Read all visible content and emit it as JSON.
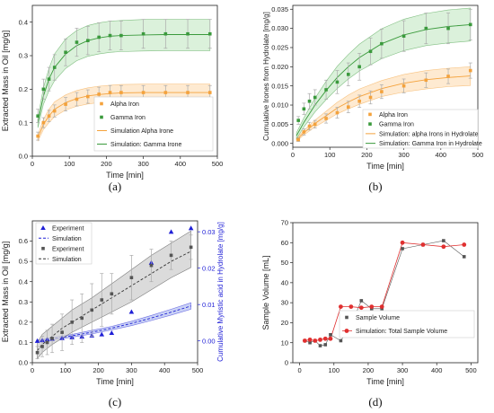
{
  "chart_data": [
    {
      "panel": "(a)",
      "type": "scatter",
      "xlabel": "Time [min]",
      "ylabel": "Extracted Mass in Oil [mg/g]",
      "xlim": [
        0,
        500
      ],
      "ylim": [
        0,
        0.45
      ],
      "xticks": [
        0,
        100,
        200,
        300,
        400,
        500
      ],
      "yticks": [
        0.0,
        0.1,
        0.2,
        0.3,
        0.4
      ],
      "xtick_labels": [
        "0",
        "100",
        "200",
        "300",
        "400",
        "500"
      ],
      "ytick_labels": [
        "0.0",
        "0.1",
        "0.2",
        "0.3",
        "0.4"
      ],
      "legend_placement": "bottom-right",
      "series": [
        {
          "name": "Alpha Iron",
          "kind": "points",
          "color": "#f4a23c",
          "marker": "square",
          "x": [
            15,
            30,
            45,
            60,
            90,
            120,
            150,
            180,
            210,
            240,
            300,
            360,
            420,
            480
          ],
          "y": [
            0.06,
            0.1,
            0.12,
            0.135,
            0.155,
            0.17,
            0.178,
            0.185,
            0.19,
            0.19,
            0.19,
            0.19,
            0.19,
            0.19
          ],
          "err": [
            0.012,
            0.015,
            0.017,
            0.018,
            0.02,
            0.02,
            0.02,
            0.021,
            0.021,
            0.021,
            0.021,
            0.021,
            0.021,
            0.021
          ]
        },
        {
          "name": "Gamma Iron",
          "kind": "points",
          "color": "#3a9a3c",
          "marker": "square",
          "x": [
            15,
            30,
            45,
            60,
            90,
            120,
            150,
            180,
            210,
            240,
            300,
            360,
            420,
            480
          ],
          "y": [
            0.12,
            0.2,
            0.23,
            0.265,
            0.31,
            0.34,
            0.345,
            0.355,
            0.36,
            0.36,
            0.365,
            0.365,
            0.365,
            0.365
          ],
          "err": [
            0.02,
            0.03,
            0.035,
            0.038,
            0.04,
            0.042,
            0.042,
            0.043,
            0.043,
            0.043,
            0.043,
            0.043,
            0.043,
            0.043
          ]
        },
        {
          "name": "Simulation Alpha Irone",
          "kind": "band",
          "color": "#f4a23c",
          "fill": "#fde3c2",
          "x": [
            15,
            30,
            45,
            60,
            90,
            120,
            150,
            180,
            210,
            240,
            300,
            360,
            420,
            480
          ],
          "y": [
            0.055,
            0.095,
            0.12,
            0.14,
            0.16,
            0.172,
            0.18,
            0.184,
            0.187,
            0.189,
            0.19,
            0.19,
            0.19,
            0.19
          ],
          "lower": [
            0.045,
            0.08,
            0.1,
            0.118,
            0.138,
            0.149,
            0.156,
            0.16,
            0.163,
            0.165,
            0.166,
            0.166,
            0.166,
            0.166
          ],
          "upper": [
            0.065,
            0.11,
            0.14,
            0.162,
            0.183,
            0.196,
            0.204,
            0.209,
            0.212,
            0.214,
            0.215,
            0.215,
            0.215,
            0.215
          ]
        },
        {
          "name": "Simulation: Gamma Irone",
          "kind": "band",
          "color": "#3a9a3c",
          "fill": "#cfeccf",
          "x": [
            15,
            30,
            45,
            60,
            90,
            120,
            150,
            180,
            210,
            240,
            300,
            360,
            420,
            480
          ],
          "y": [
            0.1,
            0.18,
            0.23,
            0.265,
            0.305,
            0.33,
            0.345,
            0.353,
            0.358,
            0.36,
            0.362,
            0.363,
            0.363,
            0.363
          ],
          "lower": [
            0.085,
            0.155,
            0.195,
            0.225,
            0.262,
            0.285,
            0.298,
            0.305,
            0.31,
            0.312,
            0.314,
            0.315,
            0.315,
            0.315
          ],
          "upper": [
            0.115,
            0.205,
            0.262,
            0.305,
            0.35,
            0.375,
            0.39,
            0.398,
            0.403,
            0.405,
            0.408,
            0.408,
            0.408,
            0.408
          ]
        }
      ]
    },
    {
      "panel": "(b)",
      "type": "scatter",
      "xlabel": "Time [min]",
      "ylabel": "Cumulative Irones from Hydrolate [mg/g]",
      "xlim": [
        0,
        500
      ],
      "ylim": [
        -0.001,
        0.036
      ],
      "xticks": [
        0,
        100,
        200,
        300,
        400,
        500
      ],
      "yticks": [
        0.0,
        0.005,
        0.01,
        0.015,
        0.02,
        0.025,
        0.03,
        0.035
      ],
      "xtick_labels": [
        "0",
        "100",
        "200",
        "300",
        "400",
        "500"
      ],
      "ytick_labels": [
        "0.000",
        "0.005",
        "0.010",
        "0.015",
        "0.020",
        "0.025",
        "0.030",
        "0.035"
      ],
      "legend_placement": "bottom-right",
      "series": [
        {
          "name": "Alpha Iron",
          "kind": "points",
          "color": "#f4a23c",
          "marker": "square",
          "x": [
            15,
            30,
            45,
            60,
            90,
            120,
            150,
            180,
            210,
            240,
            300,
            360,
            420,
            480
          ],
          "y": [
            0.001,
            0.003,
            0.0045,
            0.005,
            0.0065,
            0.008,
            0.0095,
            0.011,
            0.012,
            0.0135,
            0.015,
            0.0165,
            0.0175,
            0.019
          ],
          "err": [
            0.0005,
            0.0008,
            0.001,
            0.001,
            0.0012,
            0.0014,
            0.0015,
            0.0016,
            0.0017,
            0.0018,
            0.0018,
            0.0019,
            0.0019,
            0.002
          ]
        },
        {
          "name": "Gamma Iron",
          "kind": "points",
          "color": "#3a9a3c",
          "marker": "square",
          "x": [
            15,
            30,
            45,
            60,
            90,
            120,
            150,
            180,
            210,
            240,
            300,
            360,
            420,
            480
          ],
          "y": [
            0.006,
            0.009,
            0.011,
            0.012,
            0.014,
            0.016,
            0.018,
            0.02,
            0.024,
            0.026,
            0.028,
            0.03,
            0.03,
            0.031
          ],
          "err": [
            0.001,
            0.0015,
            0.002,
            0.002,
            0.0025,
            0.003,
            0.003,
            0.0035,
            0.0035,
            0.0038,
            0.004,
            0.004,
            0.004,
            0.004
          ]
        },
        {
          "name": "Simulation: alpha Irons in Hydrolate",
          "kind": "band",
          "color": "#f4a23c",
          "fill": "#fde3c2",
          "x": [
            10,
            30,
            60,
            90,
            120,
            150,
            180,
            240,
            300,
            360,
            420,
            480
          ],
          "y": [
            0.001,
            0.0028,
            0.0052,
            0.0072,
            0.0092,
            0.0108,
            0.0122,
            0.0143,
            0.0157,
            0.0166,
            0.0172,
            0.0176
          ],
          "lower": [
            0.0006,
            0.0022,
            0.0043,
            0.006,
            0.0077,
            0.009,
            0.0102,
            0.0122,
            0.0134,
            0.0142,
            0.0148,
            0.0151
          ],
          "upper": [
            0.0014,
            0.0034,
            0.0061,
            0.0084,
            0.0107,
            0.0126,
            0.0142,
            0.0164,
            0.018,
            0.019,
            0.0196,
            0.02
          ]
        },
        {
          "name": "Simulation: Gamma Iron in Hydrolate",
          "kind": "band",
          "color": "#3a9a3c",
          "fill": "#cfeccf",
          "x": [
            10,
            30,
            60,
            90,
            120,
            150,
            180,
            240,
            300,
            360,
            420,
            480
          ],
          "y": [
            0.002,
            0.0055,
            0.01,
            0.0138,
            0.0172,
            0.02,
            0.0224,
            0.026,
            0.0283,
            0.0297,
            0.0305,
            0.031
          ],
          "lower": [
            0.0012,
            0.0043,
            0.0082,
            0.0114,
            0.0143,
            0.0168,
            0.0189,
            0.0221,
            0.0242,
            0.0255,
            0.0262,
            0.0267
          ],
          "upper": [
            0.0028,
            0.0067,
            0.0118,
            0.0162,
            0.0201,
            0.0232,
            0.0259,
            0.0299,
            0.0324,
            0.0339,
            0.0348,
            0.0353
          ]
        }
      ]
    },
    {
      "panel": "(c)",
      "type": "scatter",
      "xlabel": "Time [min]",
      "ylabel": "Extracted Mass in Oil [mg/g]",
      "y2label": "Cumulative Myristic acid in Hydrolate [mg/g]",
      "xlim": [
        0,
        500
      ],
      "ylim": [
        0,
        0.7
      ],
      "y2lim": [
        -0.006,
        0.033
      ],
      "xticks": [
        0,
        100,
        200,
        300,
        400,
        500
      ],
      "yticks": [
        0.0,
        0.1,
        0.2,
        0.3,
        0.4,
        0.5,
        0.6
      ],
      "y2ticks": [
        0.0,
        0.01,
        0.02,
        0.03
      ],
      "xtick_labels": [
        "0",
        "100",
        "200",
        "300",
        "400",
        "500"
      ],
      "ytick_labels": [
        "0.0",
        "0.1",
        "0.2",
        "0.3",
        "0.4",
        "0.5",
        "0.6"
      ],
      "y2tick_labels": [
        "0.00",
        "0.01",
        "0.02",
        "0.03"
      ],
      "legend_placement": "top-left",
      "series": [
        {
          "name": "Experiment",
          "kind": "points",
          "axis": "y2",
          "color": "#1f1fd6",
          "marker": "triangle",
          "x": [
            15,
            30,
            45,
            60,
            90,
            120,
            150,
            180,
            210,
            240,
            300,
            360,
            420,
            480
          ],
          "y": [
            0.0,
            0.0002,
            0.0004,
            0.0006,
            0.0008,
            0.001,
            0.0012,
            0.0015,
            0.0018,
            0.0022,
            0.008,
            0.0215,
            0.03,
            0.031
          ],
          "err": [
            0,
            0,
            0,
            0,
            0,
            0,
            0,
            0,
            0,
            0,
            0,
            0,
            0,
            0
          ]
        },
        {
          "name": "Simulation",
          "kind": "band",
          "axis": "y2",
          "color": "#1f1fd6",
          "fill": "#b8c3f2",
          "dash": true,
          "x": [
            15,
            60,
            120,
            180,
            240,
            300,
            360,
            420,
            480
          ],
          "y": [
            0.0,
            0.0006,
            0.0014,
            0.0024,
            0.0035,
            0.0048,
            0.0063,
            0.0079,
            0.0096
          ],
          "lower": [
            -0.0002,
            0.0003,
            0.001,
            0.0019,
            0.003,
            0.0042,
            0.0056,
            0.0071,
            0.0087
          ],
          "upper": [
            0.0002,
            0.0009,
            0.0018,
            0.0029,
            0.004,
            0.0054,
            0.007,
            0.0087,
            0.0105
          ]
        },
        {
          "name": "Experiment",
          "kind": "points",
          "axis": "y",
          "color": "#555555",
          "marker": "square",
          "x": [
            15,
            30,
            45,
            60,
            90,
            120,
            150,
            180,
            210,
            240,
            300,
            360,
            420,
            480
          ],
          "y": [
            0.05,
            0.08,
            0.1,
            0.12,
            0.15,
            0.2,
            0.22,
            0.26,
            0.31,
            0.34,
            0.42,
            0.48,
            0.53,
            0.57
          ],
          "err": [
            0.03,
            0.05,
            0.06,
            0.07,
            0.09,
            0.11,
            0.12,
            0.13,
            0.13,
            0.1,
            0.11,
            0.08,
            0.07,
            0.06
          ]
        },
        {
          "name": "Simulation",
          "kind": "band",
          "axis": "y",
          "color": "#333333",
          "fill": "#cfcfcf",
          "dash": true,
          "x": [
            15,
            30,
            60,
            90,
            120,
            180,
            240,
            300,
            360,
            420,
            480
          ],
          "y": [
            0.06,
            0.09,
            0.13,
            0.17,
            0.2,
            0.26,
            0.32,
            0.38,
            0.44,
            0.5,
            0.55
          ],
          "lower": [
            0.02,
            0.05,
            0.09,
            0.12,
            0.15,
            0.2,
            0.25,
            0.3,
            0.36,
            0.42,
            0.47
          ],
          "upper": [
            0.1,
            0.14,
            0.18,
            0.22,
            0.26,
            0.32,
            0.39,
            0.46,
            0.53,
            0.59,
            0.65
          ]
        }
      ]
    },
    {
      "panel": "(d)",
      "type": "line",
      "xlabel": "Time [min]",
      "ylabel": "Sample Volume [mL]",
      "xlim": [
        -20,
        520
      ],
      "ylim": [
        0,
        70
      ],
      "xticks": [
        0,
        100,
        200,
        300,
        400,
        500
      ],
      "yticks": [
        0,
        10,
        20,
        30,
        40,
        50,
        60,
        70
      ],
      "xtick_labels": [
        "0",
        "100",
        "200",
        "300",
        "400",
        "500"
      ],
      "ytick_labels": [
        "0",
        "10",
        "20",
        "30",
        "40",
        "50",
        "60",
        "70"
      ],
      "legend_placement": "bottom-right",
      "series": [
        {
          "name": "Sample Volume",
          "kind": "points",
          "color": "#555555",
          "marker": "square",
          "x": [
            15,
            30,
            45,
            60,
            75,
            90,
            120,
            150,
            180,
            210,
            240,
            300,
            360,
            420,
            480
          ],
          "y": [
            11,
            10,
            11,
            8.5,
            9,
            14,
            11,
            19,
            31,
            27,
            27,
            57,
            59,
            61,
            53
          ],
          "err": []
        },
        {
          "name": "Simulation: Total Sample Volume",
          "kind": "line",
          "color": "#e03030",
          "marker": "circle",
          "x": [
            15,
            30,
            45,
            60,
            75,
            90,
            120,
            150,
            180,
            210,
            240,
            300,
            360,
            420,
            480
          ],
          "y": [
            11,
            11.5,
            11,
            11.5,
            12,
            12,
            28,
            28,
            27.5,
            28,
            28,
            60,
            59,
            58,
            59
          ],
          "err": []
        }
      ]
    }
  ]
}
